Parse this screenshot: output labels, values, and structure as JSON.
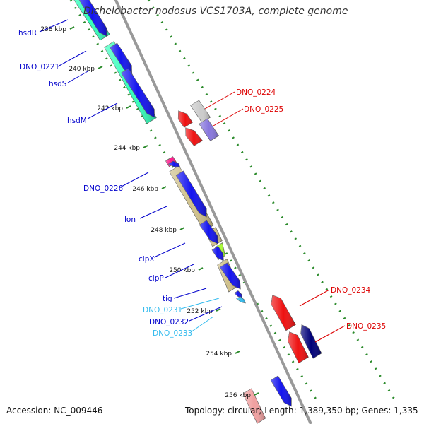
{
  "title": "Dichelobacter nodosus VCS1703A, complete genome",
  "footer": {
    "accession": "Accession: NC_009446",
    "summary": "Topology: circular; Length: 1,389,350 bp; Genes: 1,335"
  },
  "ruler": {
    "ticks": [
      "238 kbp",
      "240 kbp",
      "242 kbp",
      "244 kbp",
      "246 kbp",
      "248 kbp",
      "250 kbp",
      "252 kbp",
      "254 kbp",
      "256 kbp"
    ]
  },
  "gene_labels": [
    {
      "name": "hsdR",
      "color": "#0000cc"
    },
    {
      "name": "DNO_0221",
      "color": "#0000cc"
    },
    {
      "name": "hsdS",
      "color": "#0000cc"
    },
    {
      "name": "hsdM",
      "color": "#0000cc"
    },
    {
      "name": "DNO_0226",
      "color": "#0000cc"
    },
    {
      "name": "lon",
      "color": "#0000cc"
    },
    {
      "name": "clpX",
      "color": "#0000cc"
    },
    {
      "name": "clpP",
      "color": "#0000cc"
    },
    {
      "name": "tig",
      "color": "#0000cc"
    },
    {
      "name": "DNO_0231",
      "color": "#33bbee"
    },
    {
      "name": "DNO_0232",
      "color": "#0000cc"
    },
    {
      "name": "DNO_0233",
      "color": "#33bbee"
    },
    {
      "name": "DNO_0224",
      "color": "#dd0000"
    },
    {
      "name": "DNO_0225",
      "color": "#dd0000"
    },
    {
      "name": "DNO_0234",
      "color": "#dd0000"
    },
    {
      "name": "DNO_0235",
      "color": "#dd0000"
    }
  ],
  "colors": {
    "backbone": "#999999",
    "gc_dots": "#2a8a2a",
    "cog_teal": "#33ffbb",
    "cog_olive": "#cfc08a",
    "cog_lime": "#aaff33",
    "cog_magenta": "#ff1a8c",
    "forward_blue": "#1414ee",
    "reverse_red": "#ee1111",
    "grey_gene": "#cccccc",
    "lavender_gene": "#8877dd",
    "navy_gene": "#000077",
    "pink_gene": "#f0a0a0"
  }
}
